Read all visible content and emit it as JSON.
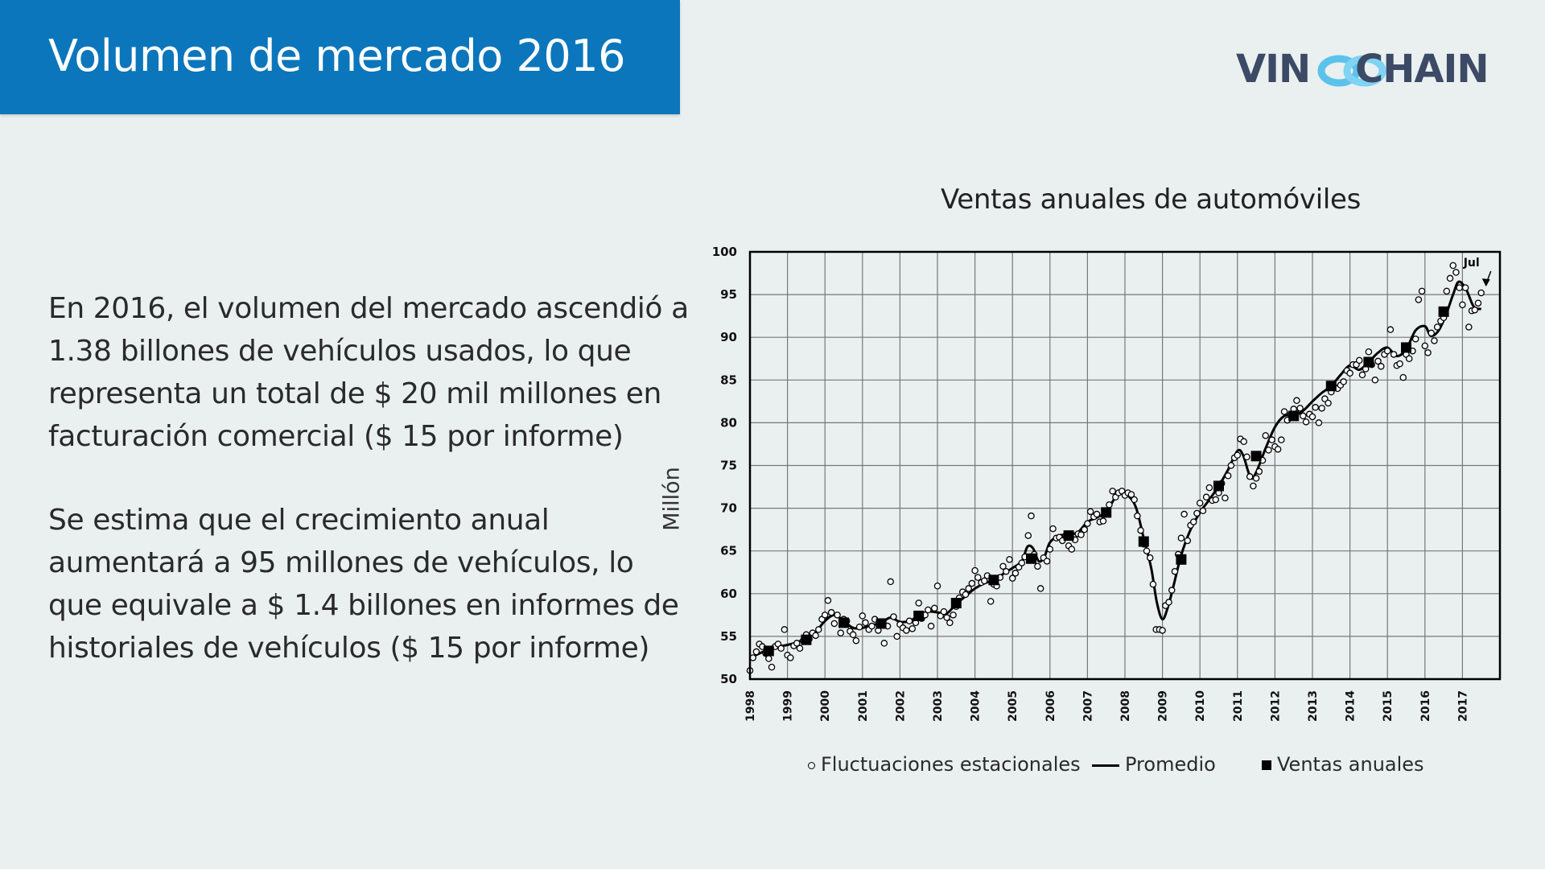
{
  "slide": {
    "title": "Volumen de mercado 2016",
    "logo": {
      "part1": "VIN",
      "part2": "CHAIN",
      "text": "VINOCHAIN",
      "accent_color": "#5bc3eb",
      "text_color": "#3c4a66",
      "icon": "chain-link-icon"
    },
    "paragraphs": [
      "En 2016, el volumen del mercado ascendió a 1.38 billones de vehículos usados, lo que representa un total de $ 20 mil millones en facturación comercial ($ 15 por informe)",
      "Se estima que el crecimiento anual aumentará a 95 millones de vehículos, lo que equivale a $ 1.4 billones en informes de historiales de vehículos ($ 15 por informe)"
    ],
    "colors": {
      "banner": "#0b76bb",
      "background": "#e9f0ef"
    }
  },
  "chart_data": {
    "type": "line",
    "title": "Ventas anuales de automóviles",
    "ylabel": "Millón",
    "xlabel": "",
    "ylim": [
      50,
      100
    ],
    "yticks": [
      50,
      55,
      60,
      65,
      70,
      75,
      80,
      85,
      90,
      95,
      100
    ],
    "xlim": [
      1998,
      2018
    ],
    "xticks": [
      "1998",
      "1999",
      "2000",
      "2001",
      "2002",
      "2003",
      "2004",
      "2005",
      "2006",
      "2007",
      "2008",
      "2009",
      "2010",
      "2011",
      "2012",
      "2013",
      "2014",
      "2015",
      "2016",
      "2017"
    ],
    "grid": true,
    "legend": [
      "Fluctuaciones estacionales",
      "Promedio",
      "Ventas anuales"
    ],
    "legend_position": "bottom",
    "annotation": {
      "text": "Jul",
      "x": 2017.5,
      "y": 95
    },
    "series": [
      {
        "name": "Ventas anuales",
        "kind": "square-marker",
        "x": [
          1998.5,
          1999.5,
          2000.5,
          2001.5,
          2002.5,
          2003.5,
          2004.5,
          2005.5,
          2006.5,
          2007.5,
          2008.5,
          2009.5,
          2010.5,
          2011.5,
          2012.5,
          2013.5,
          2014.5,
          2015.5,
          2016.5
        ],
        "y": [
          53.3,
          54.6,
          56.6,
          56.5,
          57.4,
          58.9,
          61.6,
          64.1,
          66.8,
          69.5,
          66.1,
          64.0,
          72.6,
          76.1,
          80.8,
          84.3,
          87.1,
          88.8,
          93.0
        ]
      },
      {
        "name": "Promedio",
        "kind": "line",
        "x": [
          1998.0,
          1998.25,
          1998.5,
          1998.75,
          1999.0,
          1999.25,
          1999.5,
          1999.75,
          2000.0,
          2000.25,
          2000.5,
          2000.75,
          2001.0,
          2001.25,
          2001.5,
          2001.75,
          2002.0,
          2002.25,
          2002.5,
          2002.75,
          2003.0,
          2003.25,
          2003.5,
          2003.75,
          2004.0,
          2004.25,
          2004.5,
          2004.75,
          2005.0,
          2005.25,
          2005.4,
          2005.55,
          2005.7,
          2005.85,
          2006.0,
          2006.25,
          2006.5,
          2006.75,
          2007.0,
          2007.25,
          2007.5,
          2007.75,
          2007.9,
          2008.1,
          2008.3,
          2008.5,
          2008.7,
          2008.85,
          2009.0,
          2009.15,
          2009.3,
          2009.5,
          2009.75,
          2010.0,
          2010.25,
          2010.5,
          2010.75,
          2011.0,
          2011.15,
          2011.35,
          2011.5,
          2011.75,
          2012.0,
          2012.25,
          2012.5,
          2012.75,
          2013.0,
          2013.25,
          2013.5,
          2013.75,
          2014.0,
          2014.25,
          2014.5,
          2014.75,
          2015.0,
          2015.25,
          2015.5,
          2015.75,
          2016.0,
          2016.15,
          2016.35,
          2016.55,
          2016.75,
          2016.9,
          2017.1,
          2017.3,
          2017.5
        ],
        "y": [
          52.5,
          53.0,
          53.5,
          53.8,
          54.0,
          54.3,
          54.8,
          55.5,
          56.8,
          57.5,
          56.8,
          56.0,
          56.0,
          56.3,
          56.6,
          57.2,
          56.7,
          56.8,
          57.4,
          57.9,
          57.8,
          57.7,
          58.8,
          59.7,
          60.6,
          61.2,
          61.6,
          62.3,
          63.0,
          63.8,
          65.5,
          65.3,
          63.8,
          64.3,
          66.0,
          66.8,
          66.9,
          67.2,
          68.4,
          68.9,
          69.6,
          71.3,
          71.7,
          71.4,
          70.0,
          66.5,
          63.0,
          59.0,
          57.0,
          58.5,
          61.0,
          64.5,
          67.5,
          69.5,
          71.0,
          72.6,
          74.5,
          76.7,
          76.2,
          73.6,
          74.2,
          77.0,
          79.5,
          80.8,
          80.8,
          81.4,
          82.5,
          83.5,
          84.3,
          85.6,
          86.7,
          86.2,
          87.1,
          88.2,
          88.8,
          87.8,
          88.6,
          90.8,
          91.3,
          90.2,
          90.7,
          92.5,
          95.0,
          96.5,
          95.6,
          93.6,
          93.3
        ]
      },
      {
        "name": "Fluctuaciones estacionales",
        "kind": "open-circle",
        "x": [
          1998.0,
          1998.08,
          1998.17,
          1998.25,
          1998.33,
          1998.42,
          1998.5,
          1998.58,
          1998.67,
          1998.75,
          1998.83,
          1998.92,
          1999.0,
          1999.08,
          1999.17,
          1999.25,
          1999.33,
          1999.42,
          1999.5,
          1999.58,
          1999.67,
          1999.75,
          1999.83,
          1999.92,
          2000.0,
          2000.08,
          2000.17,
          2000.25,
          2000.33,
          2000.42,
          2000.5,
          2000.58,
          2000.67,
          2000.75,
          2000.83,
          2000.92,
          2001.0,
          2001.08,
          2001.17,
          2001.25,
          2001.33,
          2001.42,
          2001.5,
          2001.58,
          2001.67,
          2001.75,
          2001.83,
          2001.92,
          2002.0,
          2002.08,
          2002.17,
          2002.25,
          2002.33,
          2002.42,
          2002.5,
          2002.58,
          2002.67,
          2002.75,
          2002.83,
          2002.92,
          2003.0,
          2003.08,
          2003.17,
          2003.25,
          2003.33,
          2003.42,
          2003.5,
          2003.58,
          2003.67,
          2003.75,
          2003.83,
          2003.92,
          2004.0,
          2004.08,
          2004.17,
          2004.25,
          2004.33,
          2004.42,
          2004.5,
          2004.58,
          2004.67,
          2004.75,
          2004.83,
          2004.92,
          2005.0,
          2005.08,
          2005.17,
          2005.25,
          2005.33,
          2005.42,
          2005.5,
          2005.58,
          2005.67,
          2005.75,
          2005.83,
          2005.92,
          2006.0,
          2006.08,
          2006.17,
          2006.25,
          2006.33,
          2006.42,
          2006.5,
          2006.58,
          2006.67,
          2006.75,
          2006.83,
          2006.92,
          2007.0,
          2007.08,
          2007.17,
          2007.25,
          2007.33,
          2007.42,
          2007.5,
          2007.58,
          2007.67,
          2007.75,
          2007.83,
          2007.92,
          2008.0,
          2008.08,
          2008.17,
          2008.25,
          2008.33,
          2008.42,
          2008.5,
          2008.58,
          2008.67,
          2008.75,
          2008.83,
          2008.92,
          2009.0,
          2009.08,
          2009.17,
          2009.25,
          2009.33,
          2009.42,
          2009.5,
          2009.58,
          2009.67,
          2009.75,
          2009.83,
          2009.92,
          2010.0,
          2010.08,
          2010.17,
          2010.25,
          2010.33,
          2010.42,
          2010.5,
          2010.58,
          2010.67,
          2010.75,
          2010.83,
          2010.92,
          2011.0,
          2011.08,
          2011.17,
          2011.25,
          2011.33,
          2011.42,
          2011.5,
          2011.58,
          2011.67,
          2011.75,
          2011.83,
          2011.92,
          2012.0,
          2012.08,
          2012.17,
          2012.25,
          2012.33,
          2012.42,
          2012.5,
          2012.58,
          2012.67,
          2012.75,
          2012.83,
          2012.92,
          2013.0,
          2013.08,
          2013.17,
          2013.25,
          2013.33,
          2013.42,
          2013.5,
          2013.58,
          2013.67,
          2013.75,
          2013.83,
          2013.92,
          2014.0,
          2014.08,
          2014.17,
          2014.25,
          2014.33,
          2014.42,
          2014.5,
          2014.58,
          2014.67,
          2014.75,
          2014.83,
          2014.92,
          2015.0,
          2015.08,
          2015.17,
          2015.25,
          2015.33,
          2015.42,
          2015.5,
          2015.58,
          2015.67,
          2015.75,
          2015.83,
          2015.92,
          2016.0,
          2016.08,
          2016.17,
          2016.25,
          2016.33,
          2016.42,
          2016.5,
          2016.58,
          2016.67,
          2016.75,
          2016.83,
          2016.92,
          2017.0,
          2017.08,
          2017.17,
          2017.25,
          2017.33,
          2017.42,
          2017.5
        ],
        "y": [
          51.0,
          52.5,
          53.2,
          54.1,
          53.8,
          53.0,
          52.4,
          51.4,
          53.8,
          54.1,
          53.6,
          55.8,
          52.8,
          52.5,
          53.9,
          54.2,
          53.6,
          54.5,
          55.2,
          54.7,
          55.4,
          55.1,
          55.8,
          57.0,
          57.5,
          59.2,
          57.8,
          56.5,
          57.5,
          55.4,
          57.0,
          56.8,
          55.6,
          55.2,
          54.5,
          56.1,
          57.4,
          56.6,
          55.8,
          56.2,
          57.0,
          55.7,
          56.5,
          54.2,
          56.2,
          61.4,
          57.3,
          55.0,
          56.4,
          56.0,
          55.7,
          56.8,
          55.9,
          56.6,
          58.9,
          57.1,
          57.5,
          58.1,
          56.2,
          58.3,
          60.9,
          57.4,
          57.9,
          57.2,
          56.6,
          57.5,
          58.5,
          59.5,
          60.2,
          59.9,
          60.6,
          61.2,
          62.7,
          61.9,
          61.3,
          61.5,
          62.1,
          59.1,
          61.1,
          60.9,
          61.9,
          63.2,
          62.6,
          64.0,
          61.8,
          62.4,
          63.1,
          63.6,
          64.3,
          66.8,
          69.1,
          64.6,
          63.2,
          60.6,
          64.2,
          63.8,
          65.2,
          67.6,
          66.5,
          66.6,
          66.2,
          66.8,
          65.6,
          65.2,
          66.3,
          67.0,
          66.9,
          67.5,
          68.2,
          69.6,
          69.0,
          69.3,
          68.4,
          68.5,
          69.4,
          70.4,
          72.0,
          71.3,
          71.8,
          72.0,
          71.5,
          71.8,
          71.6,
          71.0,
          69.1,
          67.4,
          65.8,
          65.0,
          64.2,
          61.1,
          55.8,
          55.8,
          55.7,
          58.6,
          59.0,
          60.4,
          62.6,
          64.6,
          66.5,
          69.3,
          66.2,
          68.0,
          68.4,
          69.4,
          70.6,
          69.7,
          71.3,
          72.4,
          70.9,
          71.0,
          71.8,
          72.9,
          71.2,
          73.8,
          75.0,
          75.9,
          76.2,
          78.1,
          77.8,
          76.0,
          73.7,
          72.6,
          73.5,
          74.3,
          75.6,
          78.5,
          76.8,
          78.0,
          77.2,
          76.9,
          78.0,
          81.3,
          80.3,
          81.0,
          81.6,
          82.6,
          81.7,
          80.8,
          80.1,
          81.0,
          80.7,
          81.8,
          80.0,
          81.7,
          82.8,
          82.3,
          83.6,
          84.2,
          84.0,
          84.4,
          84.8,
          86.1,
          85.8,
          86.8,
          86.8,
          87.3,
          85.6,
          86.3,
          88.3,
          86.8,
          85.0,
          87.2,
          86.6,
          88.0,
          88.4,
          90.9,
          88.0,
          86.7,
          86.9,
          85.3,
          88.0,
          87.5,
          88.4,
          89.8,
          94.4,
          95.4,
          89.0,
          88.2,
          90.5,
          89.6,
          91.2,
          91.9,
          92.3,
          95.4,
          96.9,
          98.4,
          97.6,
          95.8,
          93.8,
          95.8,
          91.2,
          93.1,
          93.2,
          94.0,
          95.2
        ]
      }
    ]
  }
}
